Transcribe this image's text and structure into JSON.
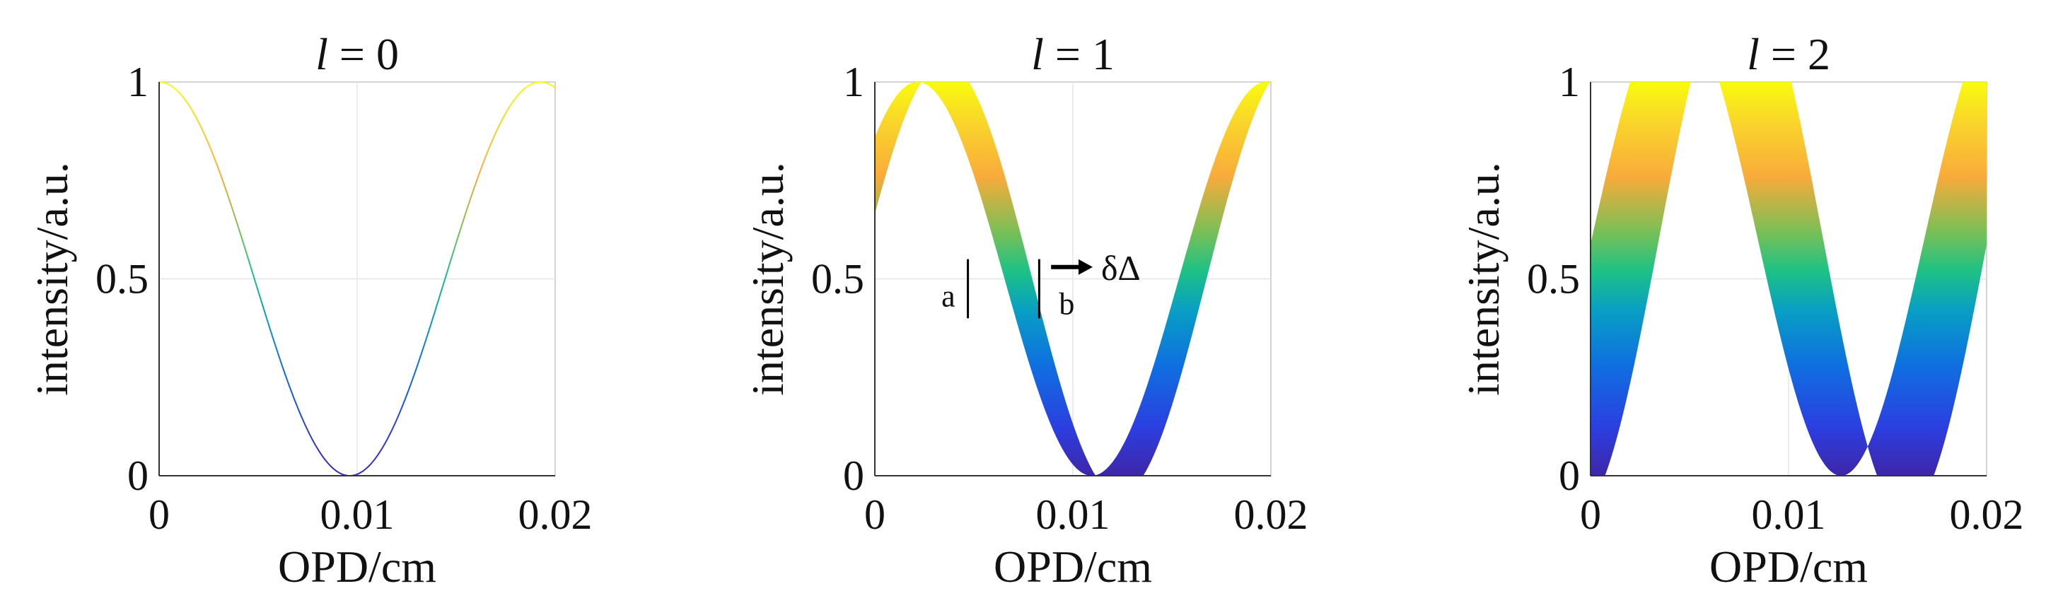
{
  "figure": {
    "xlabel": "OPD/cm",
    "ylabel": "intensity/a.u."
  },
  "chart_data": [
    {
      "type": "area",
      "title": "l = 0",
      "title_var": "l",
      "title_rest": " = 0",
      "xlabel": "OPD/cm",
      "ylabel": "intensity/a.u.",
      "xlim": [
        0,
        0.02
      ],
      "ylim": [
        0,
        1
      ],
      "xticks": [
        "0",
        "0.01",
        "0.02"
      ],
      "yticks": [
        "0",
        "0.5",
        "1"
      ],
      "grid": true,
      "band": {
        "lower": {
          "amplitude": 0.5,
          "offset": 0.5,
          "period_cm": 0.01925,
          "phase_shift_cm": 0.0,
          "clip": [
            0,
            1
          ]
        },
        "upper": {
          "amplitude": 0.5,
          "offset": 0.5,
          "period_cm": 0.01925,
          "phase_shift_cm": 0.0,
          "clip": [
            0,
            1
          ]
        }
      },
      "colorbar_stops": [
        "#3e26a8",
        "#0f5cdd",
        "#009fbd",
        "#1ec185",
        "#a4be41",
        "#f9ab3b",
        "#f9fb0e"
      ]
    },
    {
      "type": "area",
      "title": "l = 1",
      "title_var": "l",
      "title_rest": " = 1",
      "xlabel": "OPD/cm",
      "ylabel": "intensity/a.u.",
      "xlim": [
        0,
        0.02
      ],
      "ylim": [
        0,
        1
      ],
      "xticks": [
        "0",
        "0.01",
        "0.02"
      ],
      "yticks": [
        "0",
        "0.5",
        "1"
      ],
      "grid": true,
      "band": {
        "lower": {
          "amplitude": 0.5,
          "offset": 0.5,
          "period_cm": 0.0176,
          "phase_shift_cm": 0.00215,
          "clip": [
            0,
            1
          ]
        },
        "upper": {
          "amplitude": 0.55,
          "offset": 0.5,
          "period_cm": 0.0176,
          "phase_shift_cm": 0.00355,
          "clip": [
            0,
            1
          ]
        }
      },
      "annotations": {
        "marker_a": {
          "label": "a",
          "x": 0.0047,
          "y_range": [
            0.4,
            0.55
          ]
        },
        "marker_b": {
          "label": "b",
          "x": 0.0083,
          "y_range": [
            0.4,
            0.55
          ]
        },
        "shift": {
          "label": "δΔ",
          "x_start": 0.0089,
          "x_end": 0.011,
          "y": 0.53
        }
      },
      "colorbar_stops": [
        "#3e26a8",
        "#0f5cdd",
        "#009fbd",
        "#1ec185",
        "#a4be41",
        "#f9ab3b",
        "#f9fb0e"
      ]
    },
    {
      "type": "area",
      "title": "l = 2",
      "title_var": "l",
      "title_rest": " = 2",
      "xlabel": "OPD/cm",
      "ylabel": "intensity/a.u.",
      "xlim": [
        0,
        0.02
      ],
      "ylim": [
        0,
        1
      ],
      "xticks": [
        "0",
        "0.01",
        "0.02"
      ],
      "yticks": [
        "0",
        "0.5",
        "1"
      ],
      "grid": true,
      "band": {
        "lower": {
          "amplitude": 0.6,
          "offset": 0.6,
          "period_cm": 0.0168,
          "phase_shift_cm": 0.00425,
          "clip": [
            0,
            1
          ]
        },
        "upper": {
          "amplitude": 0.7,
          "offset": 0.6,
          "period_cm": 0.0166,
          "phase_shift_cm": 0.0076,
          "clip": [
            0,
            1
          ]
        }
      },
      "colorbar_stops": [
        "#3e26a8",
        "#0f5cdd",
        "#009fbd",
        "#1ec185",
        "#a4be41",
        "#f9ab3b",
        "#f9fb0e"
      ]
    }
  ]
}
